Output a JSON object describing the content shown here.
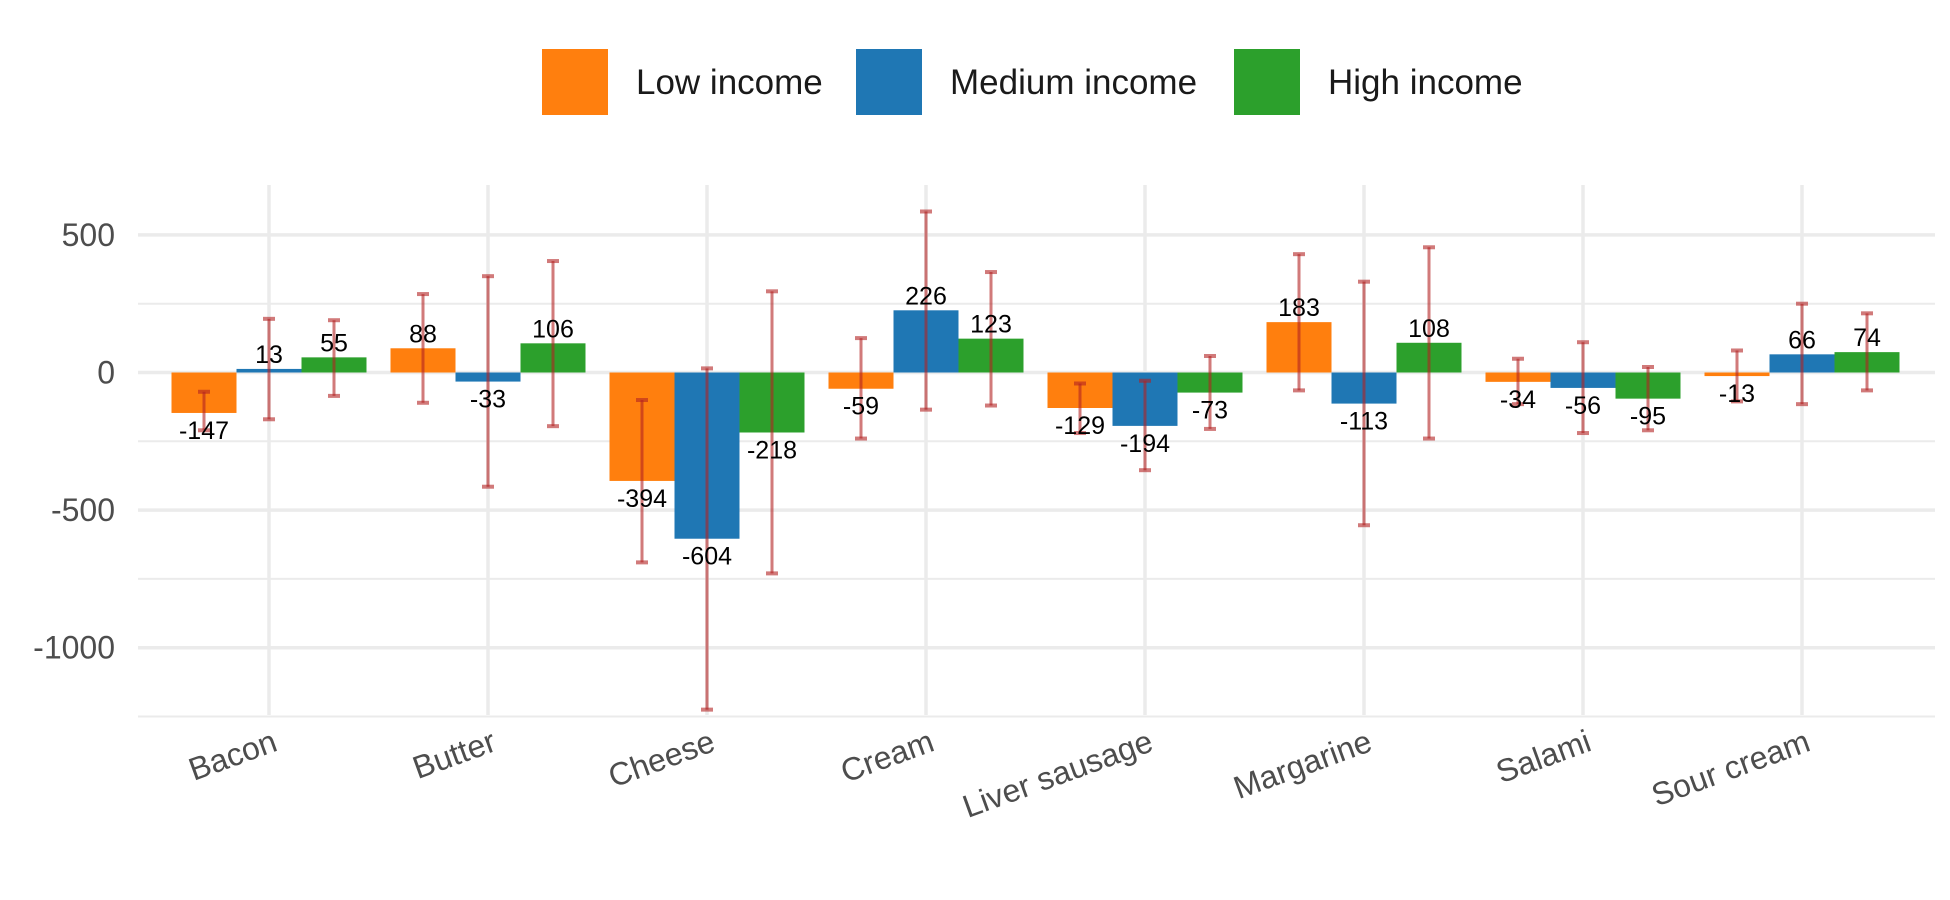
{
  "chart_data": {
    "type": "bar",
    "title": "",
    "xlabel": "",
    "ylabel": "",
    "categories": [
      "Bacon",
      "Butter",
      "Cheese",
      "Cream",
      "Liver sausage",
      "Margarine",
      "Salami",
      "Sour cream"
    ],
    "series": [
      {
        "name": "Low income",
        "color": "#ff7f0e",
        "values": [
          -147,
          88,
          -394,
          -59,
          -129,
          183,
          -34,
          -13
        ],
        "error_low": [
          -210,
          -110,
          -690,
          -240,
          -220,
          -65,
          -115,
          -105
        ],
        "error_high": [
          -70,
          285,
          -100,
          125,
          -40,
          430,
          50,
          80
        ]
      },
      {
        "name": "Medium income",
        "color": "#1f77b4",
        "values": [
          13,
          -33,
          -604,
          226,
          -194,
          -113,
          -56,
          66
        ],
        "error_low": [
          -170,
          -415,
          -1225,
          -135,
          -355,
          -555,
          -220,
          -115
        ],
        "error_high": [
          195,
          350,
          15,
          585,
          -30,
          330,
          110,
          250
        ]
      },
      {
        "name": "High income",
        "color": "#2ca02c",
        "values": [
          55,
          106,
          -218,
          123,
          -73,
          108,
          -95,
          74
        ],
        "error_low": [
          -85,
          -195,
          -730,
          -120,
          -205,
          -240,
          -210,
          -65
        ],
        "error_high": [
          190,
          405,
          295,
          365,
          60,
          455,
          20,
          215
        ]
      }
    ],
    "ylim": [
      -1250,
      680
    ],
    "yticks": [
      500,
      0,
      -500,
      -1000
    ],
    "ytick_labels": [
      "500",
      "0",
      "-500",
      "-1000"
    ],
    "error_bar_color": "#b22222",
    "grid": true,
    "legend_position": "top"
  }
}
